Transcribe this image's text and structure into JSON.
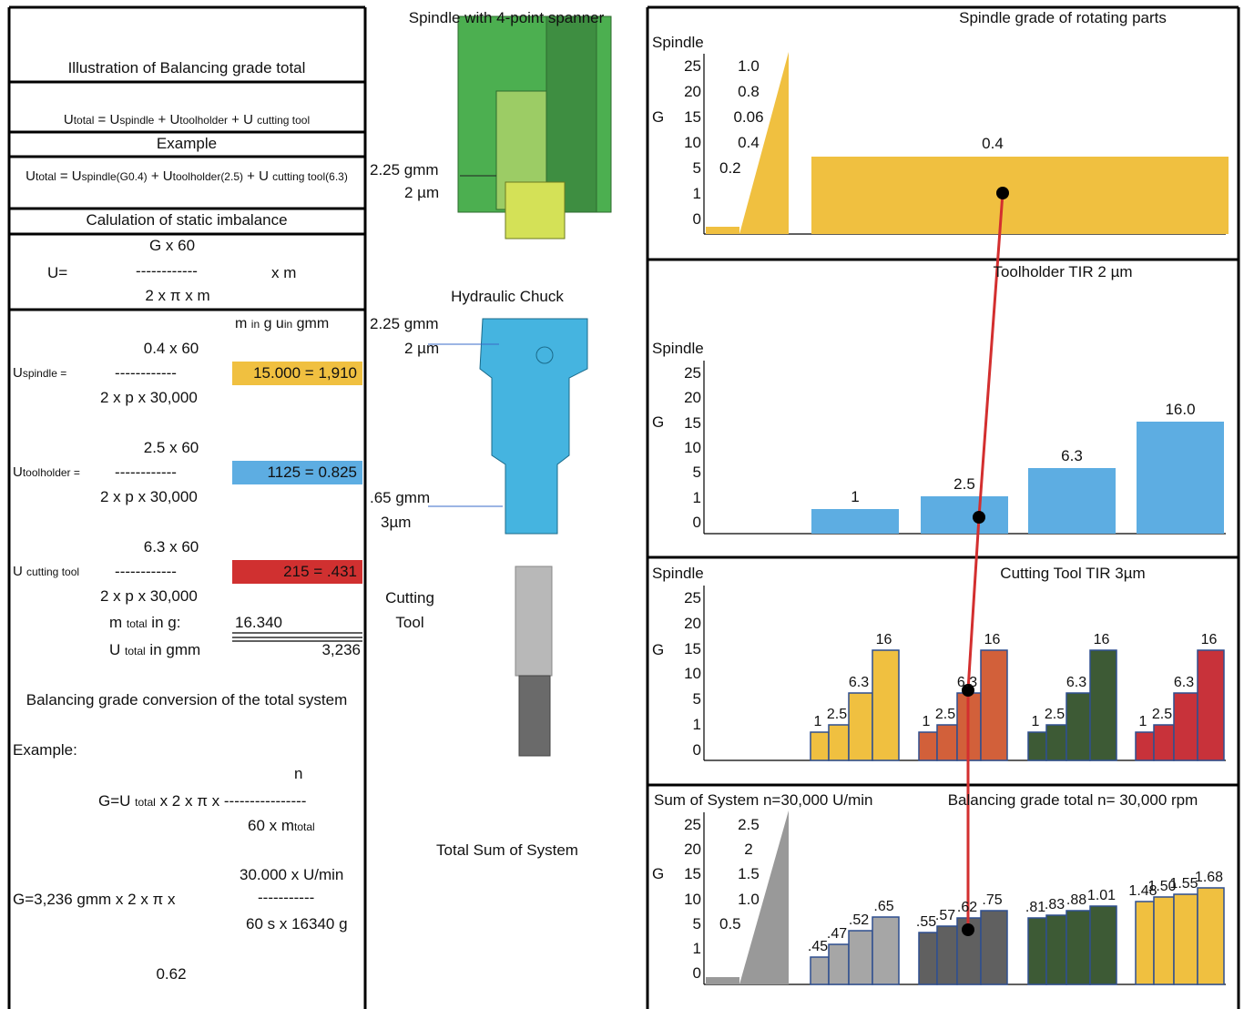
{
  "left": {
    "title": "Illustration of Balancing grade total",
    "formula1": [
      "U",
      "total",
      " = U",
      "spindle",
      " + U",
      "toolholder",
      " + U ",
      "cutting tool"
    ],
    "example": "Example",
    "formula2": [
      "U",
      "total",
      " = U",
      "spindle(G0.4)",
      " + U",
      "toolholder(2.5)",
      " + U ",
      "cutting tool(6.3)"
    ],
    "calc_title": "Calulation of static imbalance",
    "static": {
      "numerator": "G x 60",
      "lhs": "U=",
      "dashes": "------------",
      "denominator": "2 x π x m",
      "rhs": "x   m"
    },
    "units": [
      "m ",
      "in",
      " g  u",
      "in",
      " gmm"
    ],
    "rows": [
      {
        "label": [
          "U",
          "spindle ="
        ],
        "numerator": "0.4 x 60",
        "dashes": "------------",
        "denominator": "2 x p x 30,000",
        "result": "15.000 = 1,910",
        "color": "#f0c040"
      },
      {
        "label": [
          "U",
          "toolholder ="
        ],
        "numerator": "2.5 x 60",
        "dashes": "------------",
        "denominator": "2 x p x 30,000",
        "result": "1125 = 0.825",
        "color": "#5dade2"
      },
      {
        "label": [
          "U ",
          "cutting tool"
        ],
        "numerator": "6.3 x 60",
        "dashes": "------------",
        "denominator": "2 x p x 30,000",
        "result": "215 = .431",
        "color": "#d03030"
      }
    ],
    "m_total": {
      "label": [
        "m ",
        "total",
        " in g:"
      ],
      "value": "16.340"
    },
    "u_total": {
      "label": [
        "U ",
        "total",
        " in gmm"
      ],
      "value": "3,236"
    },
    "conversion": "Balancing grade conversion of the total system",
    "example2": "Example:",
    "g1": {
      "n": "n",
      "line": [
        "G=U ",
        "total",
        " x 2 x π x ----------------"
      ],
      "denominator": [
        "60 x m",
        "total"
      ]
    },
    "g2": {
      "lhs": "G=3,236 gmm x 2 x π x",
      "numerator": "30.000 x U/min",
      "dashes": "-----------",
      "denominator": "60 s x 16340 g"
    },
    "result": "0.62"
  },
  "middle": {
    "spindle_title": "Spindle with 4-point spanner",
    "spindle_imbalance": "2.25 gmm",
    "spindle_tir": "2 µm",
    "chuck_title": "Hydraulic Chuck",
    "chuck_imbalance": "2.25 gmm",
    "chuck_tir": "2 µm",
    "chuck_lower_imbalance": ".65 gmm",
    "chuck_lower_tir": "3µm",
    "tool_title": "Cutting Tool",
    "total_title": "Total Sum of System"
  },
  "panels": [
    {
      "title": "Spindle grade of rotating parts",
      "axis_label": "Spindle",
      "g_label": "G",
      "ticks": [
        "25",
        "20",
        "15",
        "10",
        "5",
        "1",
        "0"
      ],
      "inner_labels": [
        "1.0",
        "0.8",
        "0.06",
        "0.4",
        "0.2"
      ],
      "bar_label": "0.4",
      "color": "#f0c040"
    },
    {
      "title": "Toolholder TIR 2 µm",
      "axis_label": "Spindle",
      "g_label": "G",
      "ticks": [
        "25",
        "20",
        "15",
        "10",
        "5",
        "1",
        "0"
      ],
      "bar_labels": [
        "1",
        "2.5",
        "6.3",
        "16.0"
      ],
      "color": "#5dade2"
    },
    {
      "axis_label": "Spindle",
      "title": "Cutting Tool TIR 3µm",
      "g_label": "G",
      "ticks": [
        "25",
        "20",
        "15",
        "10",
        "5",
        "1",
        "0"
      ],
      "groups": [
        {
          "labels": [
            "1",
            "2.5",
            "6.3",
            "16"
          ],
          "color": "#f0c040"
        },
        {
          "labels": [
            "1",
            "2.5",
            "6.3",
            "16"
          ],
          "color": "#d2603a"
        },
        {
          "labels": [
            "1",
            "2.5",
            "6.3",
            "16"
          ],
          "color": "#3d5a35"
        },
        {
          "labels": [
            "1",
            "2.5",
            "6.3",
            "16"
          ],
          "color": "#c8323a"
        }
      ]
    },
    {
      "axis_label": "Sum of System n=30,000 U/min",
      "title": "Balancing grade total n= 30,000 rpm",
      "g_label": "G",
      "ticks": [
        "25",
        "20",
        "15",
        "10",
        "5",
        "1",
        "0"
      ],
      "inner_labels": [
        "2.5",
        "2",
        "1.5",
        "1.0",
        "0.5"
      ],
      "color": "#999999",
      "groups": [
        {
          "labels": [
            ".45",
            ".47",
            ".52",
            ".65"
          ],
          "color": "#a6a6a6"
        },
        {
          "labels": [
            ".55",
            ".57",
            ".62",
            ".75"
          ],
          "color": "#606060"
        },
        {
          "labels": [
            ".81",
            ".83",
            ".88",
            "1.01"
          ],
          "color": "#3d5a35"
        },
        {
          "labels": [
            "1.48",
            "1.50",
            "1.55",
            "1.68"
          ],
          "color": "#f0c040"
        }
      ]
    }
  ]
}
